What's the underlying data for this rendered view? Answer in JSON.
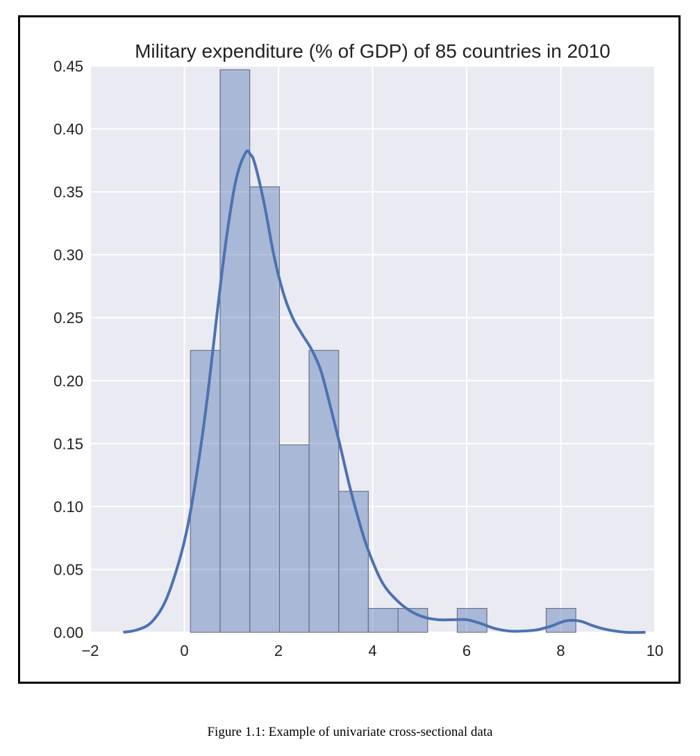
{
  "chart_data": {
    "type": "bar",
    "title": "Military expenditure (% of GDP) of 85 countries in 2010",
    "xlabel": "",
    "ylabel": "",
    "xlim": [
      -2,
      10
    ],
    "ylim": [
      0,
      0.45
    ],
    "x_ticks": [
      -2,
      0,
      2,
      4,
      6,
      8,
      10
    ],
    "x_tick_labels": [
      "−2",
      "0",
      "2",
      "4",
      "6",
      "8",
      "10"
    ],
    "y_ticks": [
      0,
      0.05,
      0.1,
      0.15,
      0.2,
      0.25,
      0.3,
      0.35,
      0.4,
      0.45
    ],
    "y_tick_labels": [
      "0.00",
      "0.05",
      "0.10",
      "0.15",
      "0.20",
      "0.25",
      "0.30",
      "0.35",
      "0.40",
      "0.45"
    ],
    "grid": true,
    "histogram": {
      "bins": [
        {
          "x0": 0.13,
          "x1": 0.76,
          "density": 0.224
        },
        {
          "x0": 0.76,
          "x1": 1.39,
          "density": 0.447
        },
        {
          "x0": 1.39,
          "x1": 2.02,
          "density": 0.354
        },
        {
          "x0": 2.02,
          "x1": 2.65,
          "density": 0.149
        },
        {
          "x0": 2.65,
          "x1": 3.28,
          "density": 0.224
        },
        {
          "x0": 3.28,
          "x1": 3.91,
          "density": 0.112
        },
        {
          "x0": 3.91,
          "x1": 4.54,
          "density": 0.019
        },
        {
          "x0": 4.54,
          "x1": 5.17,
          "density": 0.019
        },
        {
          "x0": 5.17,
          "x1": 5.8,
          "density": 0.0
        },
        {
          "x0": 5.8,
          "x1": 6.43,
          "density": 0.019
        },
        {
          "x0": 6.43,
          "x1": 7.06,
          "density": 0.0
        },
        {
          "x0": 7.06,
          "x1": 7.69,
          "density": 0.0
        },
        {
          "x0": 7.69,
          "x1": 8.32,
          "density": 0.019
        }
      ]
    },
    "kde": {
      "x": [
        -1.3,
        -1.0,
        -0.7,
        -0.4,
        -0.1,
        0.1,
        0.3,
        0.5,
        0.7,
        0.9,
        1.1,
        1.3,
        1.4,
        1.5,
        1.7,
        1.9,
        2.1,
        2.3,
        2.5,
        2.7,
        2.9,
        3.1,
        3.3,
        3.5,
        3.7,
        3.9,
        4.2,
        4.5,
        4.8,
        5.1,
        5.4,
        5.7,
        6.0,
        6.3,
        6.6,
        6.9,
        7.2,
        7.5,
        7.8,
        8.1,
        8.4,
        8.7,
        9.0,
        9.4,
        9.8
      ],
      "y": [
        0.0,
        0.002,
        0.008,
        0.025,
        0.058,
        0.09,
        0.135,
        0.19,
        0.255,
        0.315,
        0.36,
        0.381,
        0.38,
        0.372,
        0.34,
        0.3,
        0.27,
        0.25,
        0.237,
        0.225,
        0.208,
        0.18,
        0.15,
        0.118,
        0.09,
        0.066,
        0.04,
        0.026,
        0.017,
        0.012,
        0.01,
        0.01,
        0.01,
        0.007,
        0.003,
        0.001,
        0.001,
        0.002,
        0.005,
        0.009,
        0.009,
        0.005,
        0.002,
        0.0,
        0.0
      ]
    },
    "colors": {
      "plot_background": "#eaeaf2",
      "grid": "#ffffff",
      "bar_fill": "#4c72b0",
      "bar_edge": "#6a7286",
      "kde_line": "#4c72b0"
    }
  },
  "caption": "Figure 1.1: Example of univariate cross-sectional data"
}
